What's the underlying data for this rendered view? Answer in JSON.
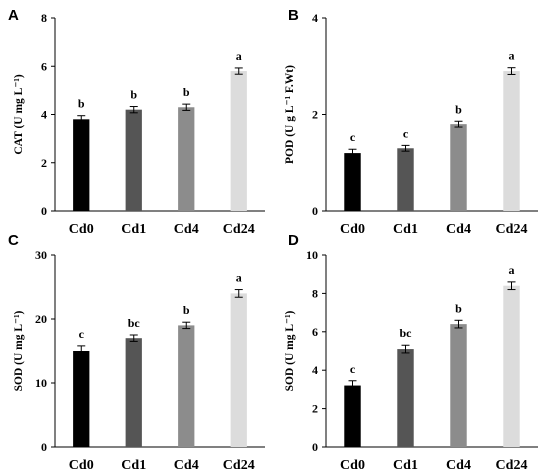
{
  "chart_data": [
    {
      "panel": "A",
      "type": "bar",
      "categories": [
        "Cd0",
        "Cd1",
        "Cd4",
        "Cd24"
      ],
      "values": [
        3.8,
        4.2,
        4.3,
        5.8
      ],
      "errors": [
        0.15,
        0.13,
        0.13,
        0.13
      ],
      "significance": [
        "b",
        "b",
        "b",
        "a"
      ],
      "colors": [
        "#000000",
        "#555555",
        "#8c8c8c",
        "#dcdcdc"
      ],
      "ylabel": "CAT (U mg L⁻¹)",
      "ylim": [
        0,
        8
      ],
      "yticks": [
        0,
        2,
        4,
        6,
        8
      ]
    },
    {
      "panel": "B",
      "type": "bar",
      "categories": [
        "Cd0",
        "Cd1",
        "Cd4",
        "Cd24"
      ],
      "values": [
        1.2,
        1.3,
        1.8,
        2.9
      ],
      "errors": [
        0.08,
        0.06,
        0.06,
        0.07
      ],
      "significance": [
        "c",
        "c",
        "b",
        "a"
      ],
      "colors": [
        "#000000",
        "#555555",
        "#8c8c8c",
        "#dcdcdc"
      ],
      "ylabel": "POD (U g L⁻¹ F.Wt)",
      "ylim": [
        0,
        4
      ],
      "yticks": [
        0,
        2,
        4
      ]
    },
    {
      "panel": "C",
      "type": "bar",
      "categories": [
        "Cd0",
        "Cd1",
        "Cd4",
        "Cd24"
      ],
      "values": [
        15.0,
        17.0,
        19.0,
        24.0
      ],
      "errors": [
        0.8,
        0.5,
        0.5,
        0.6
      ],
      "significance": [
        "c",
        "bc",
        "b",
        "a"
      ],
      "colors": [
        "#000000",
        "#555555",
        "#8c8c8c",
        "#dcdcdc"
      ],
      "ylabel": "SOD (U mg L⁻¹)",
      "ylim": [
        0,
        30
      ],
      "yticks": [
        0,
        10,
        20,
        30
      ]
    },
    {
      "panel": "D",
      "type": "bar",
      "categories": [
        "Cd0",
        "Cd1",
        "Cd4",
        "Cd24"
      ],
      "values": [
        3.2,
        5.1,
        6.4,
        8.4
      ],
      "errors": [
        0.25,
        0.2,
        0.2,
        0.2
      ],
      "significance": [
        "c",
        "bc",
        "b",
        "a"
      ],
      "colors": [
        "#000000",
        "#555555",
        "#8c8c8c",
        "#dcdcdc"
      ],
      "ylabel": "SOD (U mg L⁻¹)",
      "ylim": [
        0,
        10
      ],
      "yticks": [
        0,
        2,
        4,
        6,
        8,
        10
      ]
    }
  ]
}
